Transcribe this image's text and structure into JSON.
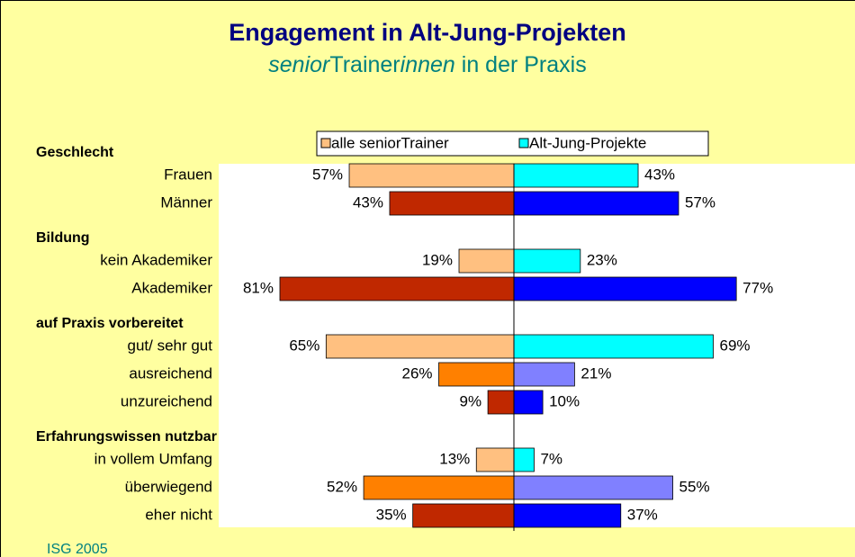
{
  "chart_data": {
    "type": "butterfly-bar",
    "title": "Engagement in Alt-Jung-Projekten",
    "subtitle": [
      {
        "text": "senior",
        "italic": true
      },
      {
        "text": "Trainer",
        "italic": false
      },
      {
        "text": "innen",
        "italic": true
      },
      {
        "text": " in der Praxis",
        "italic": false
      }
    ],
    "source": "ISG 2005",
    "groups": [
      {
        "label": "Geschlecht",
        "categories": [
          "Frauen",
          "Männer"
        ]
      },
      {
        "label": "Bildung",
        "categories": [
          "kein Akademiker",
          "Akademiker"
        ]
      },
      {
        "label": "auf Praxis vorbereitet",
        "categories": [
          "gut/ sehr gut",
          "ausreichend",
          "unzureichend"
        ]
      },
      {
        "label": "Erfahrungswissen nutzbar",
        "categories": [
          "in vollem Umfang",
          "überwiegend",
          "eher nicht"
        ]
      }
    ],
    "series": [
      {
        "name": "alle seniorTrainer",
        "color": "#ffc080",
        "values": [
          57,
          43,
          19,
          81,
          65,
          26,
          9,
          13,
          52,
          35
        ],
        "value_labels": [
          "57%",
          "43%",
          "19%",
          "81%",
          "65%",
          "26%",
          "9%",
          "13%",
          "52%",
          "35%"
        ],
        "colors": [
          "#ffc080",
          "#c02800",
          "#ffc080",
          "#c02800",
          "#ffc080",
          "#ff8000",
          "#c02800",
          "#ffc080",
          "#ff8000",
          "#c02800"
        ]
      },
      {
        "name": "Alt-Jung-Projekte",
        "color": "#00ffff",
        "values": [
          43,
          57,
          23,
          77,
          69,
          21,
          10,
          7,
          55,
          37
        ],
        "value_labels": [
          "43%",
          "57%",
          "23%",
          "77%",
          "69%",
          "21%",
          "10%",
          "7%",
          "55%",
          "37%"
        ],
        "colors": [
          "#00ffff",
          "#0000ff",
          "#00ffff",
          "#0000ff",
          "#00ffff",
          "#8080ff",
          "#0000ff",
          "#00ffff",
          "#8080ff",
          "#0000ff"
        ]
      }
    ]
  }
}
